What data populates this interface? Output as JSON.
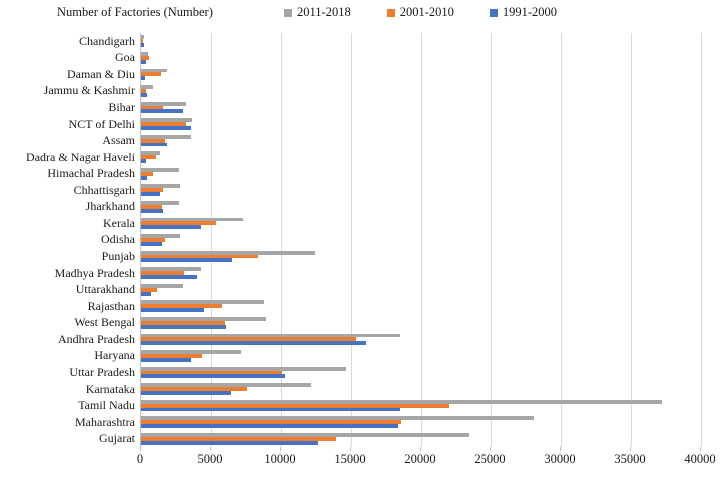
{
  "chart_data": {
    "type": "bar",
    "orientation": "horizontal",
    "title": "Number of Factories (Number)",
    "xlabel": "",
    "ylabel": "",
    "xlim": [
      0,
      40000
    ],
    "x_tick_step": 5000,
    "x_tick_labels": [
      "0",
      "5000",
      "10000",
      "15000",
      "20000",
      "25000",
      "30000",
      "35000",
      "40000"
    ],
    "grid": "vertical",
    "legend_position": "top",
    "categories": [
      "Chandigarh",
      "Goa",
      "Daman & Diu",
      "Jammu & Kashmir",
      "Bihar",
      "NCT of Delhi",
      "Assam",
      "Dadra & Nagar Haveli",
      "Himachal Pradesh",
      "Chhattisgarh",
      "Jharkhand",
      "Kerala",
      "Odisha",
      "Punjab",
      "Madhya Pradesh",
      "Uttarakhand",
      "Rajasthan",
      "West Bengal",
      "Andhra Pradesh",
      "Haryana",
      "Uttar Pradesh",
      "Karnataka",
      "Tamil Nadu",
      "Maharashtra",
      "Gujarat"
    ],
    "series": [
      {
        "name": "2011-2018",
        "color": "#A6A6A6",
        "values": [
          190,
          480,
          1850,
          860,
          3200,
          3620,
          3600,
          1360,
          2680,
          2800,
          2680,
          7300,
          2750,
          12400,
          4300,
          2970,
          8780,
          8900,
          18500,
          7170,
          14640,
          12140,
          37200,
          28100,
          23400
        ]
      },
      {
        "name": "2001-2010",
        "color": "#ED7D31",
        "values": [
          160,
          570,
          1400,
          330,
          1550,
          3200,
          1690,
          1080,
          860,
          1550,
          1480,
          5350,
          1690,
          8370,
          3090,
          1120,
          5790,
          6030,
          15330,
          4330,
          10050,
          7550,
          22000,
          18580,
          13950
        ]
      },
      {
        "name": "1991-2000",
        "color": "#4472C4",
        "values": [
          240,
          330,
          270,
          450,
          2980,
          3550,
          1880,
          330,
          450,
          1360,
          1600,
          4250,
          1500,
          6500,
          4000,
          690,
          4470,
          6080,
          16050,
          3570,
          10260,
          6400,
          18480,
          18390,
          12670
        ]
      }
    ],
    "colors": {
      "gridline": "#D9D9D9",
      "axis_line": "#BFBFBF",
      "text": "#1A1A1A"
    }
  }
}
